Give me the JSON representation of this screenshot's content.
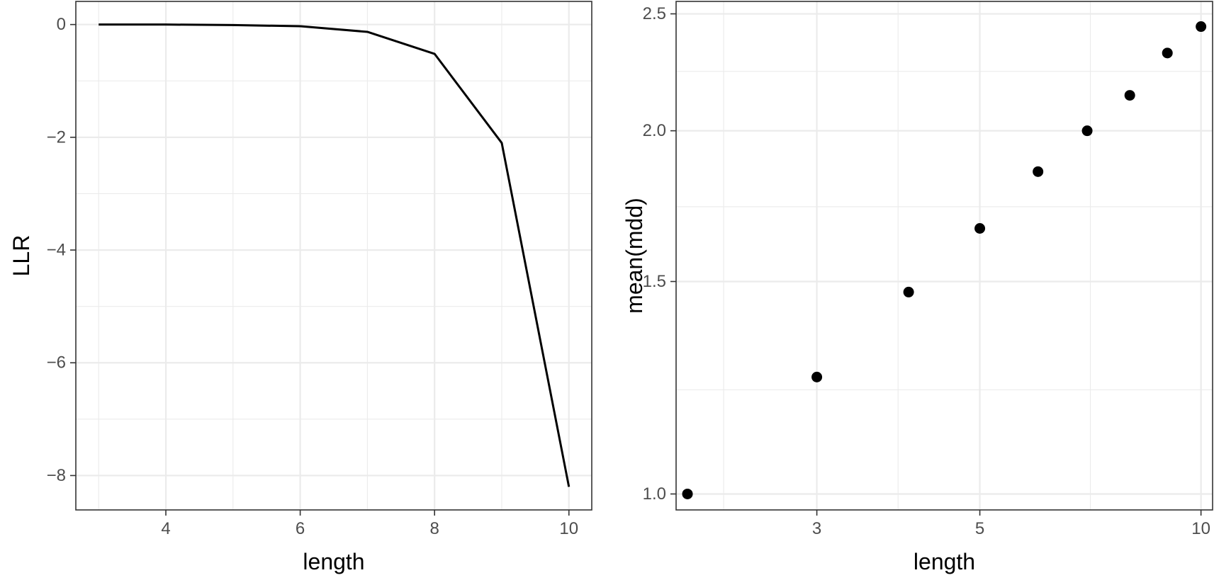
{
  "chart_data": [
    {
      "type": "line",
      "title": "",
      "xlabel": "length",
      "ylabel": "LLR",
      "x": [
        3,
        4,
        5,
        6,
        7,
        8,
        9,
        10
      ],
      "y": [
        0,
        0,
        -0.01,
        -0.03,
        -0.13,
        -0.52,
        -2.1,
        -8.2
      ],
      "xlim": [
        2.66,
        10.34
      ],
      "ylim": [
        -8.61,
        0.41
      ],
      "x_scale": "linear",
      "x_ticks": [
        4,
        6,
        8,
        10
      ],
      "x_tick_labels": [
        "4",
        "6",
        "8",
        "10"
      ],
      "x_minor": [
        3,
        5,
        7,
        9
      ],
      "y_ticks": [
        0,
        -2,
        -4,
        -6,
        -8
      ],
      "y_tick_labels": [
        "0",
        "−2",
        "−4",
        "−6",
        "−8"
      ],
      "y_minor": [
        -1,
        -3,
        -5,
        -7
      ],
      "grid": true,
      "legend": "none",
      "line_color": "#000000"
    },
    {
      "type": "scatter",
      "title": "",
      "xlabel": "length",
      "ylabel": "mean(mdd)",
      "x": [
        2,
        3,
        4,
        5,
        6,
        7,
        8,
        9,
        10
      ],
      "y": [
        1.0,
        1.25,
        1.47,
        1.66,
        1.85,
        2.0,
        2.14,
        2.32,
        2.44
      ],
      "xlim": [
        1.93,
        10.37
      ],
      "ylim": [
        0.97,
        2.56
      ],
      "x_scale": "log",
      "y_scale": "log",
      "x_ticks": [
        3,
        5,
        10
      ],
      "x_tick_labels": [
        "3",
        "5",
        "10"
      ],
      "x_minor": [
        2.24,
        3.87,
        7.07
      ],
      "y_ticks": [
        1.0,
        1.5,
        2.0,
        2.5
      ],
      "y_tick_labels": [
        "1.0",
        "1.5",
        "2.0",
        "2.5"
      ],
      "y_minor": [
        1.22,
        1.73,
        2.24
      ],
      "grid": true,
      "legend": "none",
      "point_color": "#000000"
    }
  ]
}
